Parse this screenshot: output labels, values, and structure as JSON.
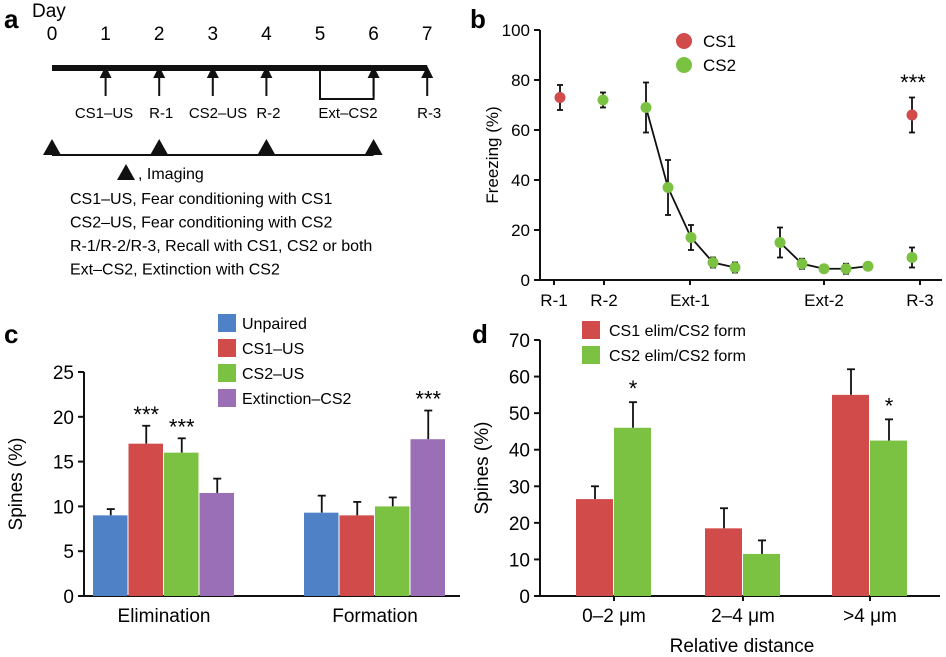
{
  "colors": {
    "unpaired": "#4f81c7",
    "cs1": "#d24b4b",
    "cs2": "#7cc242",
    "extinction": "#9b6fb5",
    "axis": "#111111"
  },
  "panel_a": {
    "letter": "a",
    "day_label": "Day",
    "days": [
      "0",
      "1",
      "2",
      "3",
      "4",
      "5",
      "6",
      "7"
    ],
    "events": [
      {
        "day": 1,
        "label": "CS1–US"
      },
      {
        "day": 2,
        "label": "R-1"
      },
      {
        "day": 3,
        "label": "CS2–US"
      },
      {
        "day": 4,
        "label": "R-2"
      },
      {
        "day": 6,
        "label": "Ext–CS2"
      },
      {
        "day": 7,
        "label": "R-3"
      }
    ],
    "ext_bracket": [
      5,
      6
    ],
    "imaging_days": [
      0,
      2,
      4,
      6
    ],
    "imaging_label": ", Imaging",
    "legend_lines": [
      "CS1–US, Fear conditioning with CS1",
      "CS2–US, Fear conditioning with CS2",
      "R-1/R-2/R-3, Recall with CS1, CS2 or both",
      "Ext–CS2, Extinction with CS2"
    ]
  },
  "chart_data": [
    {
      "panel": "b",
      "type": "line",
      "title": "",
      "xlabel": "",
      "ylabel": "Freezing  (%)",
      "ylim": [
        0,
        100
      ],
      "yticks": [
        0,
        20,
        40,
        60,
        80,
        100
      ],
      "xticks": [
        "R-1",
        "R-2",
        "Ext-1",
        "Ext-2",
        "R-3"
      ],
      "legend": [
        "CS1",
        "CS2"
      ],
      "legend_position": "top-center",
      "series": [
        {
          "name": "CS1",
          "points": [
            {
              "x": "R-1",
              "y": 73,
              "err": 5
            },
            {
              "x": "R-3",
              "y": 66,
              "err": 7
            }
          ]
        },
        {
          "name": "CS2",
          "points": [
            {
              "x": "R-2",
              "y": 72,
              "err": 3
            },
            {
              "x": "Ext-1.1",
              "y": 69,
              "err": 10
            },
            {
              "x": "Ext-1.2",
              "y": 37,
              "err": 11
            },
            {
              "x": "Ext-1.3",
              "y": 17,
              "err": 5
            },
            {
              "x": "Ext-1.4",
              "y": 7,
              "err": 2
            },
            {
              "x": "Ext-1.5",
              "y": 5,
              "err": 2
            },
            {
              "x": "Ext-2.1",
              "y": 15,
              "err": 6
            },
            {
              "x": "Ext-2.2",
              "y": 6.5,
              "err": 2
            },
            {
              "x": "Ext-2.3",
              "y": 4.5,
              "err": 1
            },
            {
              "x": "Ext-2.4",
              "y": 4.5,
              "err": 2
            },
            {
              "x": "Ext-2.5",
              "y": 5.5,
              "err": 1.5
            },
            {
              "x": "R-3",
              "y": 9,
              "err": 4
            }
          ]
        }
      ],
      "annotations": [
        {
          "text": "***",
          "x": "R-3"
        }
      ]
    },
    {
      "panel": "c",
      "type": "bar",
      "title": "",
      "xlabel": "",
      "ylabel": "Spines  (%)",
      "ylim": [
        0,
        25
      ],
      "yticks": [
        0,
        5,
        10,
        15,
        20,
        25
      ],
      "categories": [
        "Elimination",
        "Formation"
      ],
      "legend_position": "top-center",
      "series": [
        {
          "name": "Unpaired",
          "values": [
            9.0,
            9.3
          ],
          "errors": [
            0.7,
            1.9
          ]
        },
        {
          "name": "CS1–US",
          "values": [
            17.0,
            9.0
          ],
          "errors": [
            2.0,
            1.5
          ]
        },
        {
          "name": "CS2–US",
          "values": [
            16.0,
            10.0
          ],
          "errors": [
            1.6,
            1.0
          ]
        },
        {
          "name": "Extinction–CS2",
          "values": [
            11.5,
            17.5
          ],
          "errors": [
            1.6,
            3.2
          ]
        }
      ],
      "annotations": [
        {
          "text": "***",
          "category": "Elimination",
          "series": "CS1–US"
        },
        {
          "text": "***",
          "category": "Elimination",
          "series": "CS2–US"
        },
        {
          "text": "***",
          "category": "Formation",
          "series": "Extinction–CS2"
        }
      ]
    },
    {
      "panel": "d",
      "type": "bar",
      "title": "",
      "xlabel": "Relative distance",
      "ylabel": "Spines (%)",
      "ylim": [
        0,
        70
      ],
      "yticks": [
        0,
        10,
        20,
        30,
        40,
        50,
        60,
        70
      ],
      "categories": [
        "0–2 μm",
        "2–4 μm",
        ">4 μm"
      ],
      "legend_position": "top-left",
      "series": [
        {
          "name": "CS1 elim/CS2 form",
          "values": [
            26.5,
            18.5,
            55.0
          ],
          "errors": [
            3.5,
            5.5,
            7.0
          ]
        },
        {
          "name": "CS2 elim/CS2 form",
          "values": [
            46.0,
            11.5,
            42.5
          ],
          "errors": [
            7.0,
            3.7,
            5.8
          ]
        }
      ],
      "annotations": [
        {
          "text": "*",
          "category": "0–2 μm",
          "series": "CS2 elim/CS2 form"
        },
        {
          "text": "*",
          "category": ">4 μm",
          "series": "CS2 elim/CS2 form"
        }
      ]
    }
  ],
  "panel_letters": {
    "b": "b",
    "c": "c",
    "d": "d"
  }
}
